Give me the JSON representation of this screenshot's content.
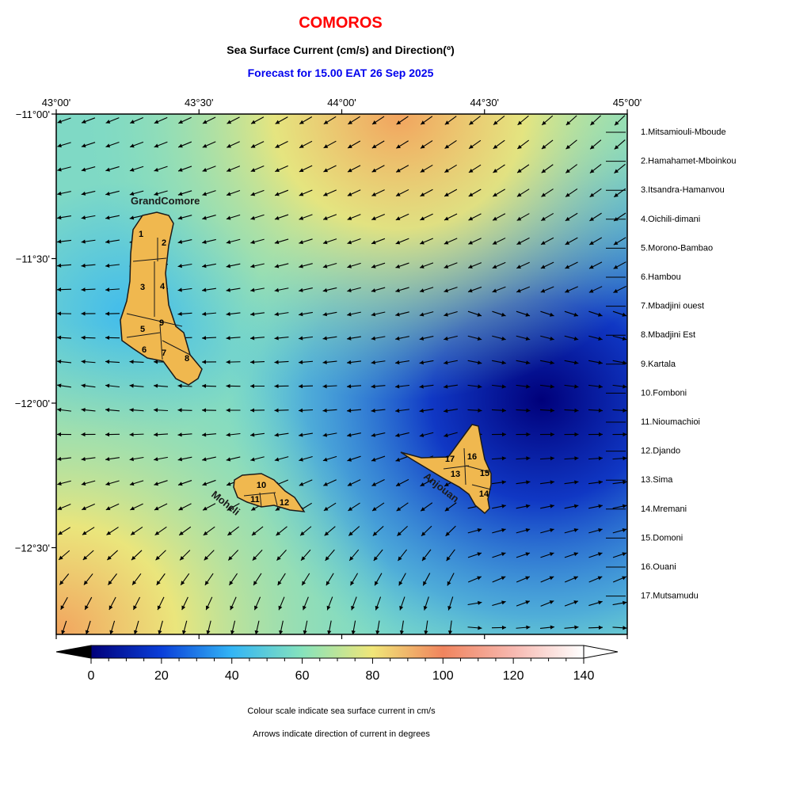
{
  "header": {
    "country": "COMOROS",
    "subtitle": "Sea Surface Current (cm/s) and Direction(º)",
    "forecast": "Forecast for  15.00 EAT 26 Sep 2025"
  },
  "map": {
    "lon_labels": [
      "43°00'",
      "43°30'",
      "44°00'",
      "44°30'",
      "45°00'"
    ],
    "lon_values": [
      43.0,
      43.5,
      44.0,
      44.5,
      45.0
    ],
    "lat_labels": [
      "−11°00'",
      "−11°30'",
      "−12°00'",
      "−12°30'"
    ],
    "lat_values": [
      -11.0,
      -11.5,
      -12.0,
      -12.5
    ],
    "extent": {
      "lon": [
        43.0,
        45.0
      ],
      "lat": [
        -12.8,
        -11.0
      ]
    },
    "islands": [
      {
        "name": "GrandComore",
        "label": "GrandComore",
        "fill": "#f0b84f"
      },
      {
        "name": "Moheli",
        "label": "Moheli",
        "fill": "#f0b84f"
      },
      {
        "name": "Anjouan",
        "label": "Anjouan",
        "fill": "#f0b84f"
      }
    ],
    "district_numbers": [
      "1",
      "2",
      "3",
      "4",
      "5",
      "6",
      "7",
      "8",
      "9",
      "10",
      "11",
      "12",
      "13",
      "14",
      "15",
      "16",
      "17"
    ],
    "current_field": "strong (80–100 cm/s) in the NE and SW corners, weakest (0–20 cm/s) east of Anjouan; arrows flow toward the W/NW north of the islands and toward the E/SE east of Anjouan"
  },
  "legend": {
    "districts": [
      "1.Mitsamiouli-Mboude",
      "2.Hamahamet-Mboinkou",
      "3.Itsandra-Hamanvou",
      "4.Oichili-dimani",
      "5.Morono-Bambao",
      "6.Hambou",
      "7.Mbadjini ouest",
      "8.Mbadjini Est",
      "9.Kartala",
      "10.Fomboni",
      "11.Nioumachioi",
      "12.Djando",
      "13.Sima",
      "14.Mremani",
      "15.Domoni",
      "16.Ouani",
      "17.Mutsamudu"
    ]
  },
  "colorbar": {
    "ticks": [
      "0",
      "20",
      "40",
      "60",
      "80",
      "100",
      "120",
      "140"
    ],
    "tick_values": [
      0,
      20,
      40,
      60,
      80,
      100,
      120,
      140
    ],
    "range": [
      -10,
      150
    ],
    "stops": [
      {
        "v": -10,
        "c": "#000046"
      },
      {
        "v": 0,
        "c": "#00007a"
      },
      {
        "v": 20,
        "c": "#0a3fd9"
      },
      {
        "v": 40,
        "c": "#33b5f5"
      },
      {
        "v": 60,
        "c": "#86e3bc"
      },
      {
        "v": 80,
        "c": "#f0e678"
      },
      {
        "v": 100,
        "c": "#f0845e"
      },
      {
        "v": 120,
        "c": "#f7b8b0"
      },
      {
        "v": 140,
        "c": "#ffffff"
      }
    ]
  },
  "notes": {
    "line1": "Colour scale indicate sea surface current in cm/s",
    "line2": "Arrows indicate direction of current in degrees"
  }
}
